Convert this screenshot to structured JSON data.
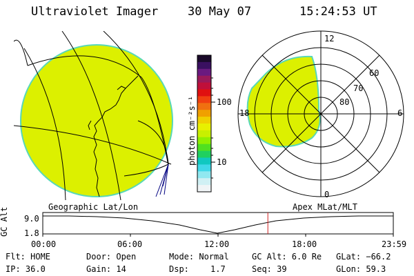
{
  "header": {
    "instrument": "Ultraviolet Imager",
    "date": "30 May 07",
    "time": "15:24:53 UT"
  },
  "colorbar": {
    "unit_label": "photon cm⁻²s⁻¹",
    "ticks": [
      "100",
      "10"
    ],
    "colors": [
      "#1a0a2a",
      "#3a1060",
      "#6a1a80",
      "#9a1a5a",
      "#c0103a",
      "#e01010",
      "#f04010",
      "#f07010",
      "#f0a000",
      "#f0d000",
      "#e8f000",
      "#c8f000",
      "#90f000",
      "#50e020",
      "#20d060",
      "#10c8c0",
      "#40d8e8",
      "#90e8f0",
      "#d0f0f4",
      "#f0f4f6"
    ]
  },
  "polar": {
    "labels": [
      "12",
      "18",
      "6",
      "0",
      "60",
      "70",
      "80"
    ]
  },
  "timeline": {
    "left_label": "Geographic Lat/Lon",
    "right_label": "Apex MLat/MLT",
    "y_axis_label": "GC Alt",
    "y_ticks": [
      "9.0",
      "1.8"
    ],
    "x_ticks": [
      "00:00",
      "06:00",
      "12:00",
      "18:00",
      "23:59"
    ],
    "cursor_hours": 15.41
  },
  "status": {
    "flt": "Flt: HOME",
    "ip": "IP: 36.0",
    "door": "Door: Open",
    "gain": "Gain: 14",
    "mode": "Mode: Normal",
    "dsp_label": "Dsp:",
    "dsp_value": "1.7",
    "gcalt": "GC Alt: 6.0 Re",
    "seq": "Seq: 39",
    "glat": "GLat: −66.2",
    "glon": "GLon:  59.3"
  },
  "colors": {
    "aurora": "#dcf000",
    "aurora_edge": "#58d8b8",
    "cursor": "#d02020"
  }
}
